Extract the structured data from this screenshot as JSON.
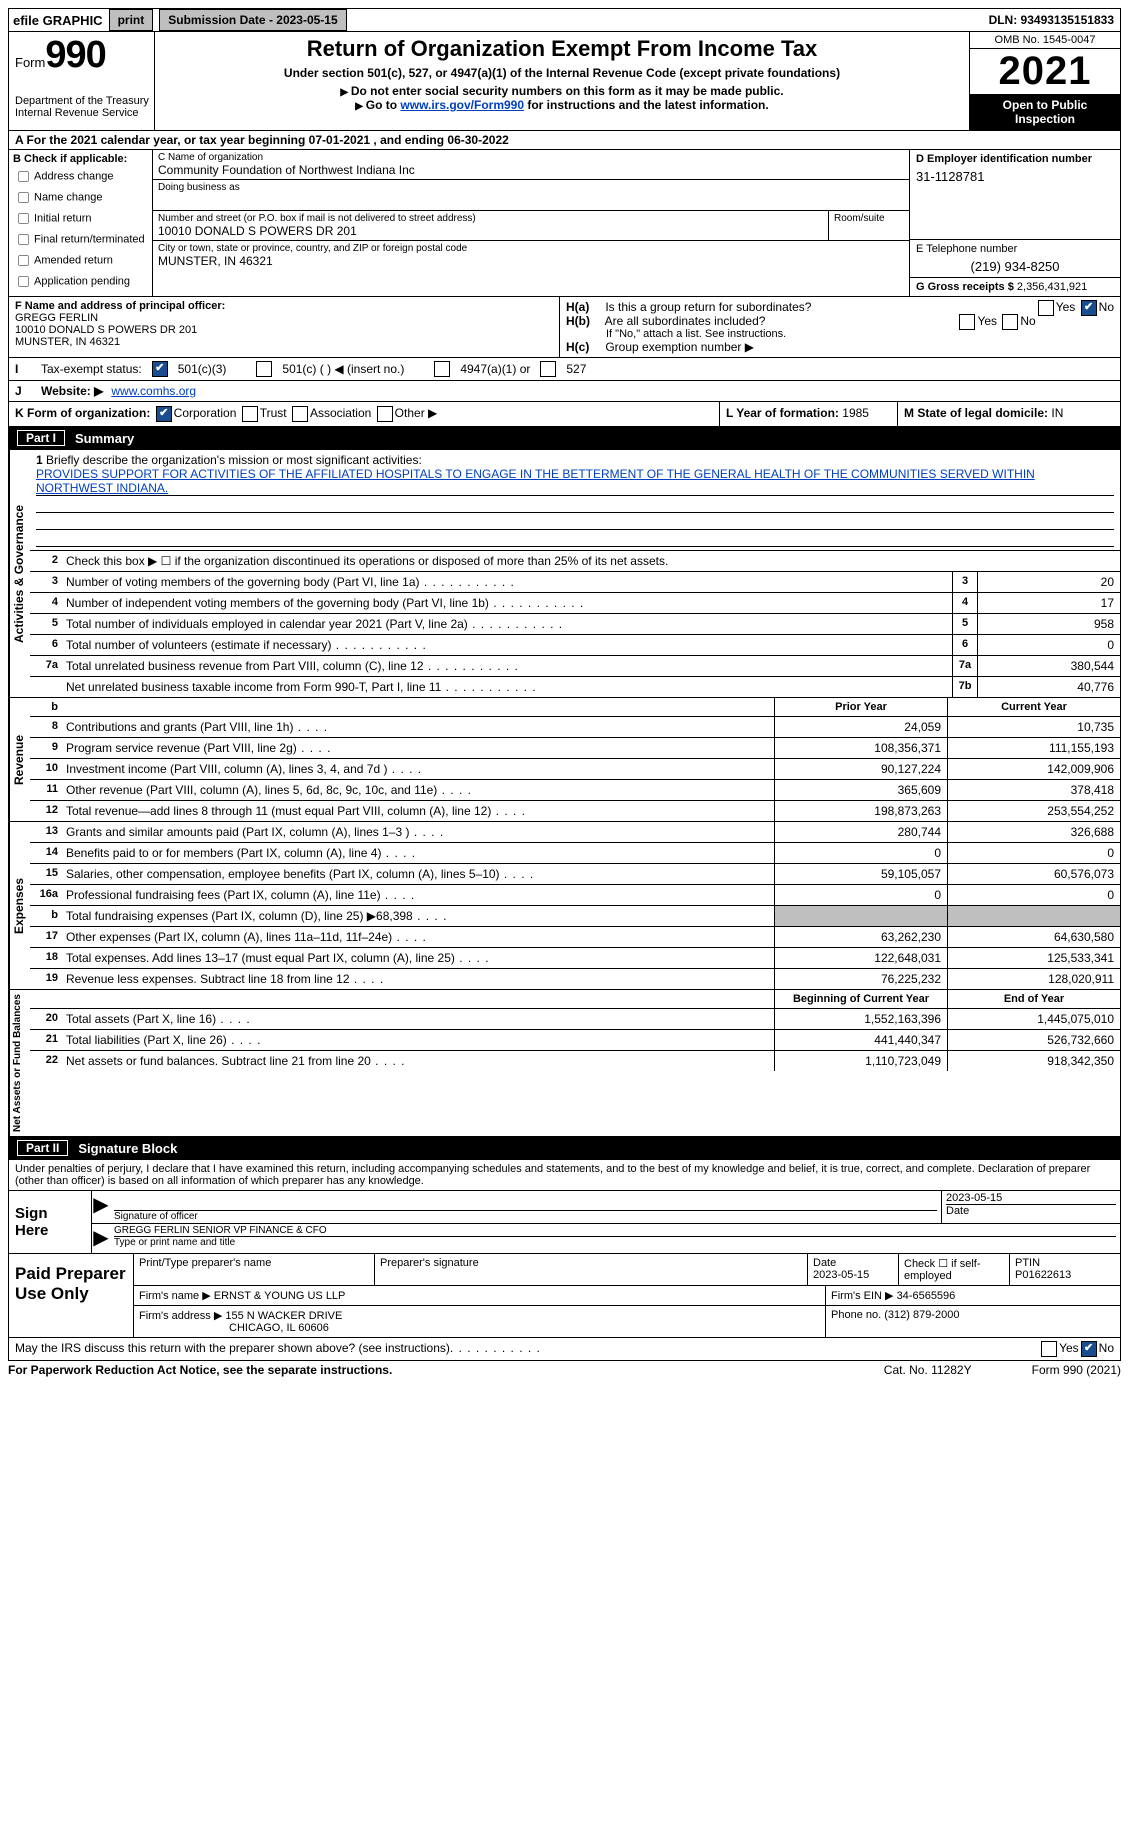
{
  "topbar": {
    "efile": "efile GRAPHIC",
    "print": "print",
    "submission": "Submission Date - 2023-05-15",
    "dln": "DLN: 93493135151833"
  },
  "header": {
    "form_word": "Form",
    "form_num": "990",
    "dept": "Department of the Treasury\nInternal Revenue Service",
    "title": "Return of Organization Exempt From Income Tax",
    "sub": "Under section 501(c), 527, or 4947(a)(1) of the Internal Revenue Code (except private foundations)",
    "note1": "Do not enter social security numbers on this form as it may be made public.",
    "note2_pre": "Go to ",
    "note2_link": "www.irs.gov/Form990",
    "note2_post": " for instructions and the latest information.",
    "omb": "OMB No. 1545-0047",
    "year": "2021",
    "open": "Open to Public Inspection"
  },
  "A": {
    "text_pre": "A For the 2021 calendar year, or tax year beginning ",
    "begin": "07-01-2021",
    "mid": "   , and ending ",
    "end": "06-30-2022"
  },
  "B": {
    "label": "B Check if applicable:",
    "opts": [
      "Address change",
      "Name change",
      "Initial return",
      "Final return/terminated",
      "Amended return",
      "Application pending"
    ]
  },
  "C": {
    "name_lbl": "C Name of organization",
    "name": "Community Foundation of Northwest Indiana Inc",
    "dba_lbl": "Doing business as",
    "dba": "",
    "addr_lbl": "Number and street (or P.O. box if mail is not delivered to street address)",
    "room_lbl": "Room/suite",
    "addr": "10010 DONALD S POWERS DR 201",
    "city_lbl": "City or town, state or province, country, and ZIP or foreign postal code",
    "city": "MUNSTER, IN  46321"
  },
  "D": {
    "lbl": "D Employer identification number",
    "val": "31-1128781"
  },
  "E": {
    "lbl": "E Telephone number",
    "val": "(219) 934-8250"
  },
  "G": {
    "lbl": "G Gross receipts $",
    "val": "2,356,431,921"
  },
  "F": {
    "lbl": "F  Name and address of principal officer:",
    "name": "GREGG FERLIN",
    "addr": "10010 DONALD S POWERS DR 201",
    "city": "MUNSTER, IN  46321"
  },
  "H": {
    "a": "Is this a group return for subordinates?",
    "b": "Are all subordinates included?",
    "b_note": "If \"No,\" attach a list. See instructions.",
    "c": "Group exemption number ▶"
  },
  "I": {
    "lbl": "Tax-exempt status:",
    "o1": "501(c)(3)",
    "o2": "501(c) ( ) ◀ (insert no.)",
    "o3": "4947(a)(1) or",
    "o4": "527"
  },
  "J": {
    "lbl": "Website: ▶",
    "val": "www.comhs.org"
  },
  "K": {
    "lbl": "K Form of organization:",
    "o1": "Corporation",
    "o2": "Trust",
    "o3": "Association",
    "o4": "Other ▶"
  },
  "L": {
    "lbl": "L Year of formation:",
    "val": "1985"
  },
  "M": {
    "lbl": "M State of legal domicile:",
    "val": "IN"
  },
  "part1": {
    "tab": "Part I",
    "title": "Summary"
  },
  "sections": {
    "ag": "Activities & Governance",
    "rev": "Revenue",
    "exp": "Expenses",
    "na": "Net Assets or Fund Balances"
  },
  "line1": {
    "lbl": "Briefly describe the organization's mission or most significant activities:",
    "text": "PROVIDES SUPPORT FOR ACTIVITIES OF THE AFFILIATED HOSPITALS TO ENGAGE IN THE BETTERMENT OF THE GENERAL HEALTH OF THE COMMUNITIES SERVED WITHIN NORTHWEST INDIANA."
  },
  "line2": "Check this box ▶ ☐ if the organization discontinued its operations or disposed of more than 25% of its net assets.",
  "lines_single": [
    {
      "n": "3",
      "t": "Number of voting members of the governing body (Part VI, line 1a)",
      "box": "3",
      "v": "20"
    },
    {
      "n": "4",
      "t": "Number of independent voting members of the governing body (Part VI, line 1b)",
      "box": "4",
      "v": "17"
    },
    {
      "n": "5",
      "t": "Total number of individuals employed in calendar year 2021 (Part V, line 2a)",
      "box": "5",
      "v": "958"
    },
    {
      "n": "6",
      "t": "Total number of volunteers (estimate if necessary)",
      "box": "6",
      "v": "0"
    },
    {
      "n": "7a",
      "t": "Total unrelated business revenue from Part VIII, column (C), line 12",
      "box": "7a",
      "v": "380,544"
    },
    {
      "n": "",
      "t": "Net unrelated business taxable income from Form 990-T, Part I, line 11",
      "box": "7b",
      "v": "40,776"
    }
  ],
  "col_hdrs": {
    "b": "b",
    "prior": "Prior Year",
    "curr": "Current Year"
  },
  "rev_lines": [
    {
      "n": "8",
      "t": "Contributions and grants (Part VIII, line 1h)",
      "p": "24,059",
      "c": "10,735"
    },
    {
      "n": "9",
      "t": "Program service revenue (Part VIII, line 2g)",
      "p": "108,356,371",
      "c": "111,155,193"
    },
    {
      "n": "10",
      "t": "Investment income (Part VIII, column (A), lines 3, 4, and 7d )",
      "p": "90,127,224",
      "c": "142,009,906"
    },
    {
      "n": "11",
      "t": "Other revenue (Part VIII, column (A), lines 5, 6d, 8c, 9c, 10c, and 11e)",
      "p": "365,609",
      "c": "378,418"
    },
    {
      "n": "12",
      "t": "Total revenue—add lines 8 through 11 (must equal Part VIII, column (A), line 12)",
      "p": "198,873,263",
      "c": "253,554,252"
    }
  ],
  "exp_lines": [
    {
      "n": "13",
      "t": "Grants and similar amounts paid (Part IX, column (A), lines 1–3 )",
      "p": "280,744",
      "c": "326,688"
    },
    {
      "n": "14",
      "t": "Benefits paid to or for members (Part IX, column (A), line 4)",
      "p": "0",
      "c": "0"
    },
    {
      "n": "15",
      "t": "Salaries, other compensation, employee benefits (Part IX, column (A), lines 5–10)",
      "p": "59,105,057",
      "c": "60,576,073"
    },
    {
      "n": "16a",
      "t": "Professional fundraising fees (Part IX, column (A), line 11e)",
      "p": "0",
      "c": "0"
    },
    {
      "n": "b",
      "t": "Total fundraising expenses (Part IX, column (D), line 25) ▶68,398",
      "p": "",
      "c": "",
      "grey": true
    },
    {
      "n": "17",
      "t": "Other expenses (Part IX, column (A), lines 11a–11d, 11f–24e)",
      "p": "63,262,230",
      "c": "64,630,580"
    },
    {
      "n": "18",
      "t": "Total expenses. Add lines 13–17 (must equal Part IX, column (A), line 25)",
      "p": "122,648,031",
      "c": "125,533,341"
    },
    {
      "n": "19",
      "t": "Revenue less expenses. Subtract line 18 from line 12",
      "p": "76,225,232",
      "c": "128,020,911"
    }
  ],
  "na_hdrs": {
    "b": "Beginning of Current Year",
    "e": "End of Year"
  },
  "na_lines": [
    {
      "n": "20",
      "t": "Total assets (Part X, line 16)",
      "p": "1,552,163,396",
      "c": "1,445,075,010"
    },
    {
      "n": "21",
      "t": "Total liabilities (Part X, line 26)",
      "p": "441,440,347",
      "c": "526,732,660"
    },
    {
      "n": "22",
      "t": "Net assets or fund balances. Subtract line 21 from line 20",
      "p": "1,110,723,049",
      "c": "918,342,350"
    }
  ],
  "part2": {
    "tab": "Part II",
    "title": "Signature Block"
  },
  "sig": {
    "decl": "Under penalties of perjury, I declare that I have examined this return, including accompanying schedules and statements, and to the best of my knowledge and belief, it is true, correct, and complete. Declaration of preparer (other than officer) is based on all information of which preparer has any knowledge.",
    "sign_here": "Sign Here",
    "sig_officer": "Signature of officer",
    "date": "2023-05-15",
    "date_lbl": "Date",
    "name": "GREGG FERLIN  SENIOR VP FINANCE & CFO",
    "name_lbl": "Type or print name and title"
  },
  "prep": {
    "lbl": "Paid Preparer Use Only",
    "r1": {
      "c1": "Print/Type preparer's name",
      "c2": "Preparer's signature",
      "c3_l": "Date",
      "c3": "2023-05-15",
      "c4_l": "Check ☐ if self-employed",
      "c5_l": "PTIN",
      "c5": "P01622613"
    },
    "r2": {
      "c1": "Firm's name     ▶",
      "v": "ERNST & YOUNG US LLP",
      "c2": "Firm's EIN ▶",
      "v2": "34-6565596"
    },
    "r3": {
      "c1": "Firm's address ▶",
      "v": "155 N WACKER DRIVE",
      "c2": "Phone no.",
      "v2": "(312) 879-2000"
    },
    "r3b": "CHICAGO, IL  60606"
  },
  "discuss": "May the IRS discuss this return with the preparer shown above? (see instructions)",
  "footer": {
    "l": "For Paperwork Reduction Act Notice, see the separate instructions.",
    "m": "Cat. No. 11282Y",
    "r": "Form 990 (2021)"
  }
}
